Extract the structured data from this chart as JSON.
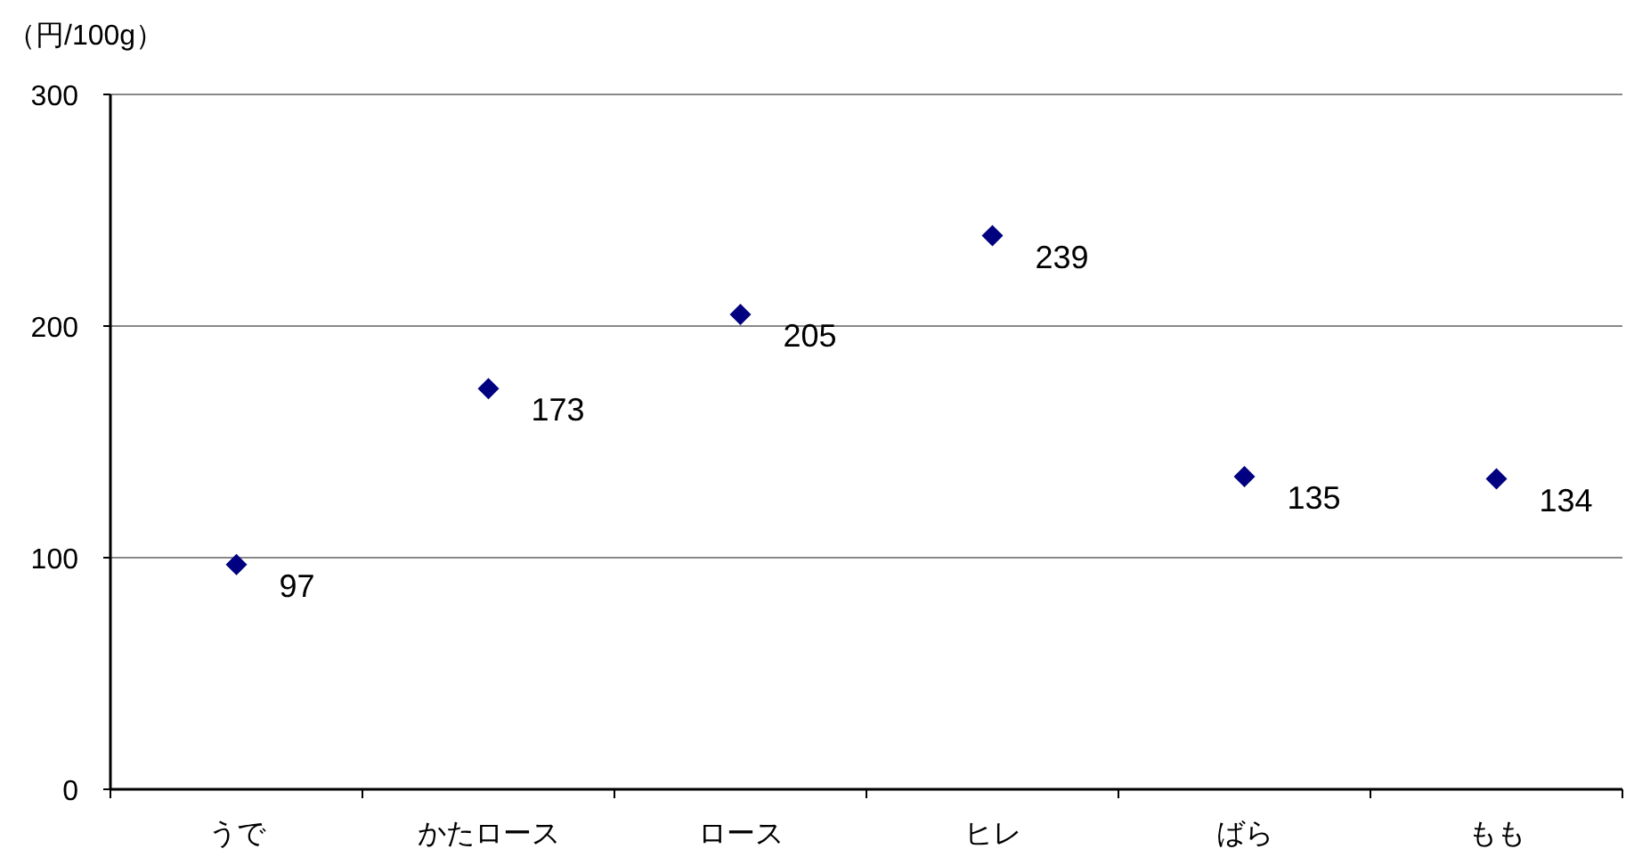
{
  "chart_data": {
    "type": "scatter",
    "ylabel": "（円/100g）",
    "categories": [
      "うで",
      "かたロース",
      "ロース",
      "ヒレ",
      "ばら",
      "もも"
    ],
    "values": [
      97,
      173,
      205,
      239,
      135,
      134
    ],
    "color": "#000080",
    "marker": "diamond",
    "data_labels": true,
    "ylim": [
      0,
      300
    ],
    "yticks": [
      0,
      100,
      200,
      300
    ],
    "grid": "y"
  }
}
